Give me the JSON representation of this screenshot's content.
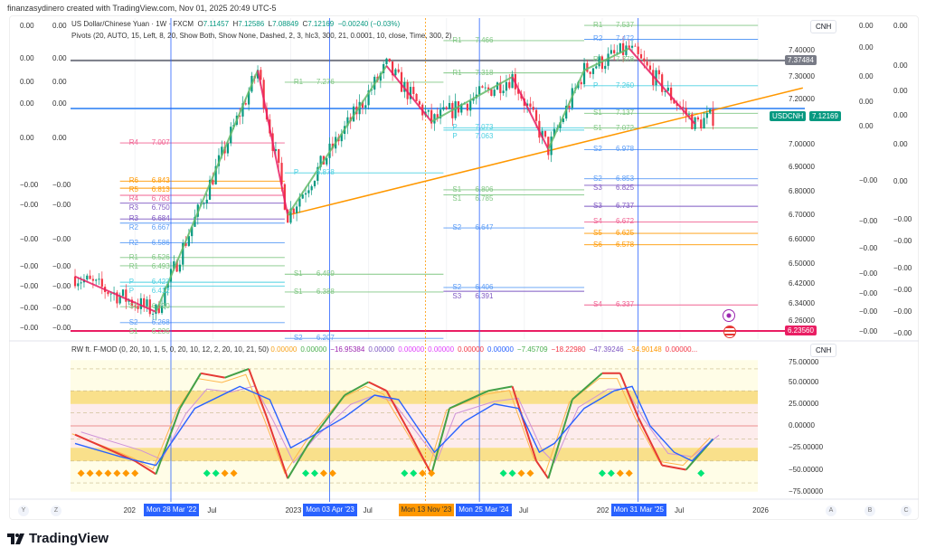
{
  "credit": "finanzasydinero created with TradingView.com, Nov 01, 2025 20:49 UTC-5",
  "legend": {
    "symbol": "US Dollar/Chinese Yuan · 1W · FXCM",
    "o_label": "O",
    "o": "7.11457",
    "h_label": "H",
    "h": "7.12586",
    "l_label": "L",
    "l": "7.08849",
    "c_label": "C",
    "c": "7.12169",
    "change": "−0.00240 (−0.03%)",
    "pivots": "Pivots (20, AUTO, 15, Left, 8, 20, Show Both, Show None, Dashed, 2, 3, hlc3, 300, 21, 0.0001, 10, close, Time, 300, 2)"
  },
  "indicator_legend": {
    "name": "RW ft. F-MOD (0, 20, 10, 1, 5, 0, 20, 10, 12, 2, 20, 10, 21, 50)",
    "values": [
      {
        "v": "0.00000",
        "c": "#f7a21b"
      },
      {
        "v": "0.00000",
        "c": "#4caf50"
      },
      {
        "v": "−16.95384",
        "c": "#9c27b0"
      },
      {
        "v": "0.00000",
        "c": "#7e57c2"
      },
      {
        "v": "0.00000",
        "c": "#e040fb"
      },
      {
        "v": "0.00000",
        "c": "#e040fb"
      },
      {
        "v": "0.00000",
        "c": "#f23645"
      },
      {
        "v": "0.00000",
        "c": "#2962ff"
      },
      {
        "v": "−7.45709",
        "c": "#4caf50"
      },
      {
        "v": "−18.22980",
        "c": "#f23645"
      },
      {
        "v": "−47.39246",
        "c": "#7e57c2"
      },
      {
        "v": "−34.90148",
        "c": "#ff9800"
      },
      {
        "v": "0.00000...",
        "c": "#f23645"
      }
    ]
  },
  "currency": "CNH",
  "price_axis": [
    "7.40000",
    "7.30000",
    "7.20000",
    "7.00000",
    "6.90000",
    "6.80000",
    "6.70000",
    "6.60000",
    "6.50000",
    "6.42000",
    "6.34000",
    "6.26000"
  ],
  "tags": {
    "high_line": "7.37484",
    "symbol": "USDCNH",
    "last": "7.12169",
    "low_line": "6.23560"
  },
  "osc_axis": [
    "75.00000",
    "50.00000",
    "25.00000",
    "0.00000",
    "−25.00000",
    "−50.00000",
    "−75.00000"
  ],
  "left_col1": [
    "0.00",
    "0.00",
    "0.00",
    "0.00",
    "0.00",
    "−0.00",
    "−0.00",
    "−0.00",
    "−0.00",
    "−0.00",
    "−0.00",
    "−0.00"
  ],
  "left_col2": [
    "0.00",
    "0.00",
    "0.00",
    "0.00",
    "0.00",
    "−0.00",
    "−0.00",
    "−0.00",
    "−0.00",
    "−0.00",
    "−0.00",
    "−0.00"
  ],
  "right_col1": [
    "0.00",
    "0.00",
    "0.00",
    "0.00",
    "0.00",
    "−0.00",
    "−0.00",
    "−0.00",
    "−0.00",
    "−0.00",
    "−0.00",
    "−0.00"
  ],
  "right_col2": [
    "0.00",
    "0.00",
    "0.00",
    "0.00",
    "0.00",
    "0.00",
    "−0.00",
    "−0.00",
    "−0.00",
    "−0.00",
    "−0.00",
    "−0.00"
  ],
  "time_axis": {
    "labels": [
      {
        "t": "202",
        "wk": -2
      },
      {
        "t": "Jul",
        "wk": 26
      },
      {
        "t": "2023",
        "wk": 52
      },
      {
        "t": "Jul",
        "wk": 78
      },
      {
        "t": "Jul",
        "wk": 130
      },
      {
        "t": "202",
        "wk": 156
      },
      {
        "t": "Jul",
        "wk": 182
      },
      {
        "t": "2026",
        "wk": 208
      }
    ],
    "highlights": [
      {
        "t": "Mon 28 Mar '22",
        "wk": 12,
        "c": "#2962ff"
      },
      {
        "t": "Mon 03 Apr '23",
        "wk": 65,
        "c": "#2962ff"
      },
      {
        "t": "Mon 13 Nov '23",
        "wk": 97,
        "c": "#ff9800"
      },
      {
        "t": "Mon 25 Mar '24",
        "wk": 115,
        "c": "#2962ff"
      },
      {
        "t": "Mon 31 Mar '25",
        "wk": 168,
        "c": "#2962ff"
      }
    ],
    "corner": [
      "Y",
      "Z",
      "A",
      "B",
      "C"
    ]
  },
  "brand": "TradingView",
  "colors": {
    "up": "#089981",
    "down": "#f23645",
    "zigup": "#66bb6a",
    "zigdown": "#e91e63",
    "trend": "#ff9800"
  },
  "chart_data": {
    "type": "candlestick",
    "title": "US Dollar/Chinese Yuan · 1W · FXCM",
    "x_unit": "weeks since Jan 2022",
    "y_scale": "log",
    "ylim": [
      6.2,
      7.55
    ],
    "swings": [
      [
        -20,
        6.45
      ],
      [
        7,
        6.31
      ],
      [
        41,
        7.33
      ],
      [
        51,
        6.7
      ],
      [
        84,
        7.35
      ],
      [
        99,
        7.1
      ],
      [
        126,
        7.3
      ],
      [
        138,
        6.98
      ],
      [
        150,
        7.33
      ],
      [
        165,
        7.43
      ],
      [
        187,
        7.09
      ],
      [
        193,
        7.12169
      ]
    ],
    "horizontal_lines": [
      {
        "price": 7.37484,
        "color": "#787b86"
      },
      {
        "price": 7.158,
        "color": "#5b9cf6"
      },
      {
        "price": 6.2356,
        "color": "#e91e63"
      }
    ],
    "trendline": {
      "from": [
        51,
        6.7
      ],
      "to": [
        223,
        7.25
      ]
    },
    "pivot_groups": [
      {
        "from": -5,
        "to": 50,
        "levels": [
          [
            "R4",
            "7.007",
            "#f06292"
          ],
          [
            "R6",
            "6.843",
            "#ff9800"
          ],
          [
            "R5",
            "6.813",
            "#ff9800"
          ],
          [
            "R4",
            "6.783",
            "#f06292"
          ],
          [
            "R3",
            "6.750",
            "#7e57c2"
          ],
          [
            "R3",
            "6.684",
            "#7e57c2"
          ],
          [
            "R2",
            "6.667",
            "#5b9cf6"
          ],
          [
            "R2",
            "6.586",
            "#5b9cf6"
          ],
          [
            "R1",
            "6.526",
            "#81c784"
          ],
          [
            "R1",
            "6.493",
            "#81c784"
          ],
          [
            "P",
            "6.427",
            "#4dd0e1"
          ],
          [
            "P",
            "6.412",
            "#4dd0e1"
          ],
          [
            "S1",
            "6.330",
            "#81c784"
          ],
          [
            "S2",
            "6.268",
            "#5b9cf6"
          ],
          [
            "S1",
            "6.236",
            "#81c784"
          ]
        ]
      },
      {
        "from": 50,
        "to": 103,
        "levels": [
          [
            "R1",
            "7.276",
            "#81c784"
          ],
          [
            "P",
            "6.878",
            "#4dd0e1"
          ],
          [
            "S1",
            "6.459",
            "#81c784"
          ],
          [
            "S1",
            "6.388",
            "#81c784"
          ],
          [
            "S2",
            "6.207",
            "#5b9cf6"
          ]
        ]
      },
      {
        "from": 103,
        "to": 150,
        "levels": [
          [
            "R1",
            "7.466",
            "#81c784"
          ],
          [
            "R1",
            "7.318",
            "#81c784"
          ],
          [
            "P",
            "7.073",
            "#4dd0e1"
          ],
          [
            "P",
            "7.063",
            "#4dd0e1"
          ],
          [
            "S1",
            "6.806",
            "#81c784"
          ],
          [
            "S1",
            "6.785",
            "#81c784"
          ],
          [
            "S2",
            "6.647",
            "#5b9cf6"
          ],
          [
            "S2",
            "6.406",
            "#5b9cf6"
          ],
          [
            "S3",
            "6.391",
            "#7e57c2"
          ]
        ]
      },
      {
        "from": 150,
        "to": 208,
        "levels": [
          [
            "R1",
            "7.537",
            "#81c784"
          ],
          [
            "R2",
            "7.472",
            "#5b9cf6"
          ],
          [
            "R1",
            "7.378",
            "#81c784"
          ],
          [
            "P",
            "7.260",
            "#4dd0e1"
          ],
          [
            "S1",
            "7.137",
            "#81c784"
          ],
          [
            "S1",
            "7.072",
            "#81c784"
          ],
          [
            "S2",
            "6.978",
            "#5b9cf6"
          ],
          [
            "S2",
            "6.853",
            "#5b9cf6"
          ],
          [
            "S3",
            "6.825",
            "#7e57c2"
          ],
          [
            "S3",
            "6.737",
            "#7e57c2"
          ],
          [
            "S4",
            "6.672",
            "#f06292"
          ],
          [
            "S5",
            "6.625",
            "#ff9800"
          ],
          [
            "S6",
            "6.578",
            "#ff9800"
          ],
          [
            "S4",
            "6.337",
            "#f06292"
          ]
        ]
      }
    ],
    "oscillator": {
      "ylim": [
        -75,
        75
      ],
      "bands": [
        [
          25,
          40
        ],
        [
          -40,
          -25
        ]
      ],
      "blue": [
        [
          -20,
          -20
        ],
        [
          -5,
          -35
        ],
        [
          7,
          -45
        ],
        [
          20,
          20
        ],
        [
          35,
          45
        ],
        [
          45,
          30
        ],
        [
          52,
          -25
        ],
        [
          60,
          -10
        ],
        [
          70,
          10
        ],
        [
          80,
          35
        ],
        [
          88,
          30
        ],
        [
          95,
          -5
        ],
        [
          100,
          -30
        ],
        [
          110,
          5
        ],
        [
          120,
          25
        ],
        [
          128,
          20
        ],
        [
          135,
          -30
        ],
        [
          140,
          -20
        ],
        [
          150,
          20
        ],
        [
          160,
          40
        ],
        [
          166,
          45
        ],
        [
          172,
          0
        ],
        [
          180,
          -30
        ],
        [
          186,
          -40
        ],
        [
          193,
          -15
        ]
      ],
      "fast": [
        [
          -20,
          -10
        ],
        [
          0,
          -40
        ],
        [
          7,
          -55
        ],
        [
          15,
          20
        ],
        [
          22,
          60
        ],
        [
          30,
          55
        ],
        [
          38,
          65
        ],
        [
          44,
          10
        ],
        [
          51,
          -60
        ],
        [
          58,
          -20
        ],
        [
          70,
          35
        ],
        [
          78,
          50
        ],
        [
          84,
          40
        ],
        [
          92,
          -10
        ],
        [
          99,
          -55
        ],
        [
          105,
          20
        ],
        [
          118,
          40
        ],
        [
          126,
          45
        ],
        [
          134,
          -40
        ],
        [
          138,
          -60
        ],
        [
          146,
          30
        ],
        [
          156,
          60
        ],
        [
          162,
          60
        ],
        [
          168,
          10
        ],
        [
          176,
          -45
        ],
        [
          184,
          -50
        ],
        [
          193,
          -15
        ]
      ]
    }
  }
}
